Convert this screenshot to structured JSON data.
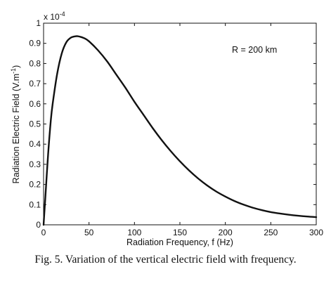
{
  "chart_data": {
    "type": "line",
    "xlabel": "Radiation Frequency, f (Hz)",
    "ylabel": "Radiation Electric Field (V.m",
    "ylabel_superscript": "-1",
    "ylabel_close": ")",
    "y_multiplier_base": "x 10",
    "y_multiplier_exponent": "-4",
    "annotation": "R = 200 km",
    "xlim": [
      0,
      300
    ],
    "ylim": [
      0,
      1
    ],
    "x_ticks": [
      "0",
      "50",
      "100",
      "150",
      "200",
      "250",
      "300"
    ],
    "x_tick_values": [
      0,
      50,
      100,
      150,
      200,
      250,
      300
    ],
    "y_ticks": [
      "0",
      "0.1",
      "0.2",
      "0.3",
      "0.4",
      "0.5",
      "0.6",
      "0.7",
      "0.8",
      "0.9",
      "1"
    ],
    "y_tick_values": [
      0,
      0.1,
      0.2,
      0.3,
      0.4,
      0.5,
      0.6,
      0.7,
      0.8,
      0.9,
      1
    ],
    "grid": false,
    "series": [
      {
        "color": "#111111",
        "x": [
          0,
          2,
          5,
          8,
          10,
          15,
          20,
          25,
          30,
          35,
          38,
          40,
          45,
          50,
          60,
          70,
          80,
          90,
          100,
          110,
          120,
          130,
          140,
          150,
          160,
          170,
          180,
          190,
          200,
          210,
          220,
          230,
          240,
          250,
          260,
          270,
          280,
          290,
          300
        ],
        "y": [
          0,
          0.14,
          0.35,
          0.52,
          0.6,
          0.75,
          0.85,
          0.905,
          0.928,
          0.935,
          0.935,
          0.933,
          0.925,
          0.91,
          0.865,
          0.81,
          0.745,
          0.68,
          0.61,
          0.545,
          0.48,
          0.42,
          0.365,
          0.315,
          0.27,
          0.23,
          0.195,
          0.165,
          0.14,
          0.118,
          0.1,
          0.085,
          0.073,
          0.063,
          0.056,
          0.05,
          0.045,
          0.041,
          0.038
        ]
      }
    ]
  },
  "caption": "Fig. 5. Variation of the vertical electric field with frequency."
}
